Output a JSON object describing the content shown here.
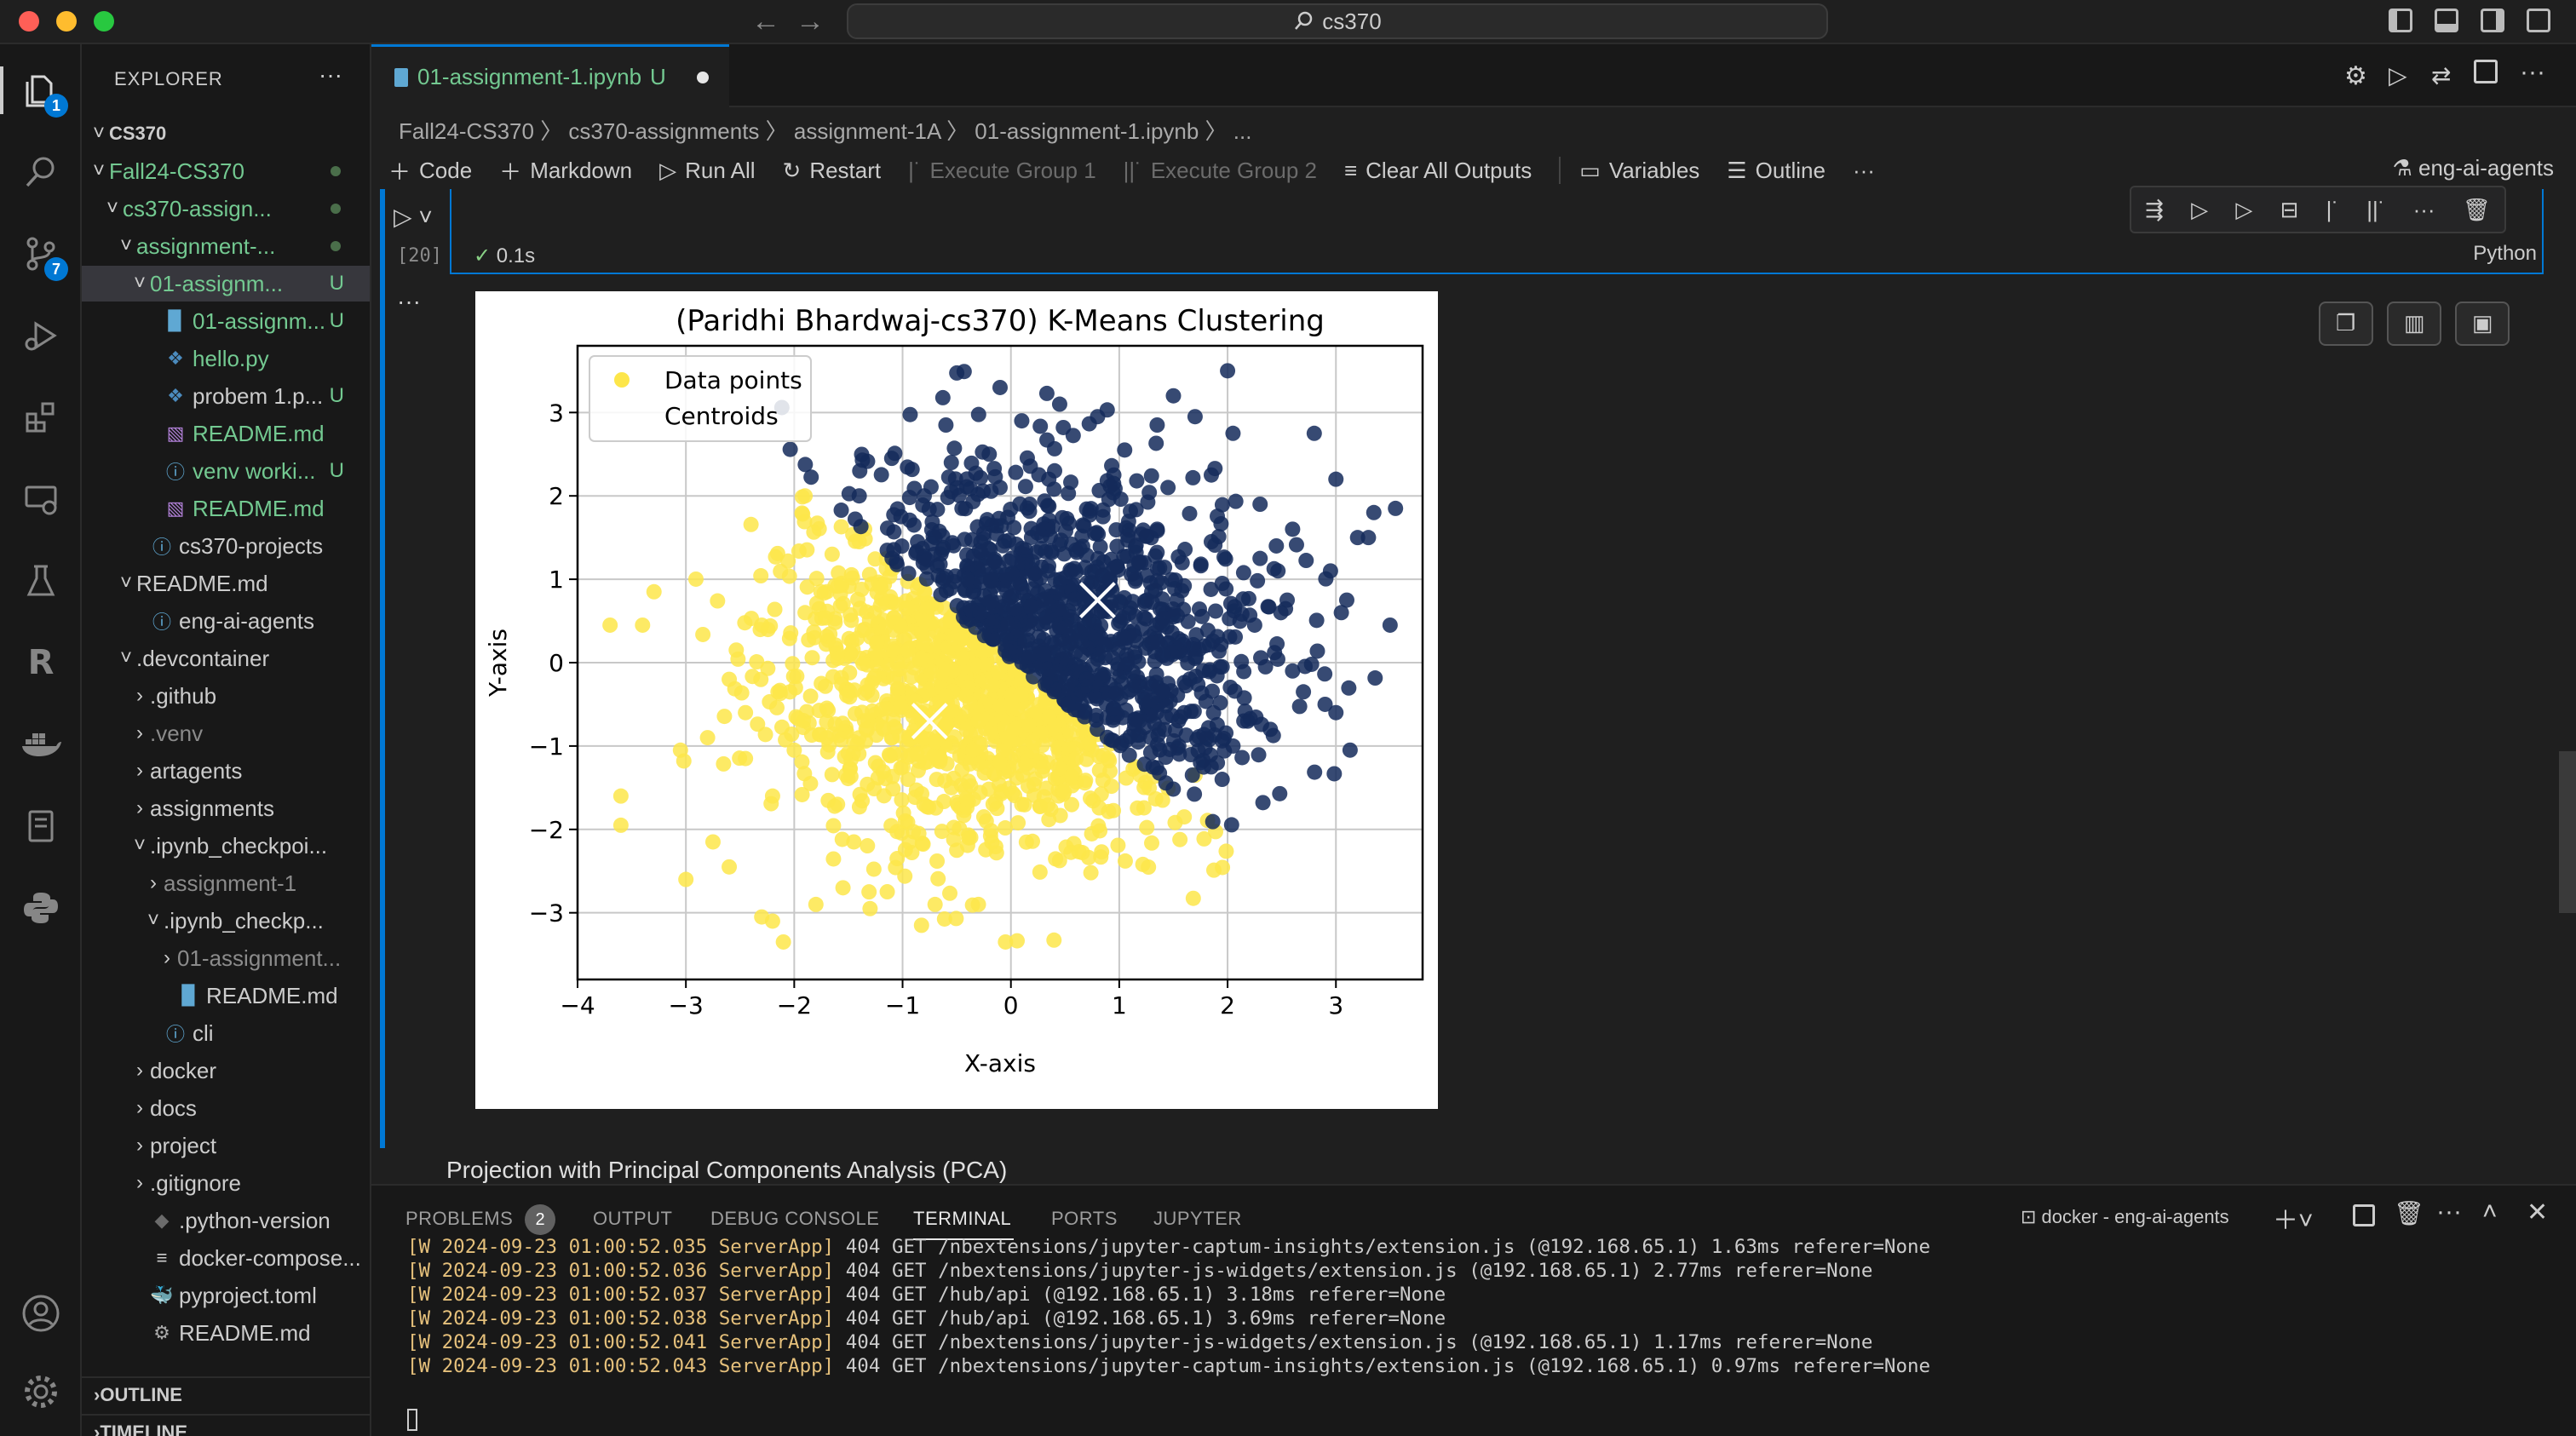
{
  "window": {
    "search": "cs370"
  },
  "sidebar": {
    "title": "EXPLORER",
    "root": "CS370",
    "items": [
      {
        "label": "Fall24-CS370"
      },
      {
        "label": "cs370-assign..."
      },
      {
        "label": "assignment-..."
      },
      {
        "label": "01-assignm...",
        "status": "U"
      },
      {
        "label": "01-assignm...",
        "status": "U"
      },
      {
        "label": "hello.py"
      },
      {
        "label": "probem 1.p...",
        "status": "U"
      },
      {
        "label": "README.md"
      },
      {
        "label": "venv worki...",
        "status": "U"
      },
      {
        "label": "README.md"
      },
      {
        "label": "cs370-projects"
      },
      {
        "label": "README.md"
      },
      {
        "label": "eng-ai-agents"
      },
      {
        "label": ".devcontainer"
      },
      {
        "label": ".github"
      },
      {
        "label": ".venv"
      },
      {
        "label": "artagents"
      },
      {
        "label": "assignments"
      },
      {
        "label": ".ipynb_checkpoi..."
      },
      {
        "label": "assignment-1"
      },
      {
        "label": ".ipynb_checkp..."
      },
      {
        "label": "01-assignment..."
      },
      {
        "label": "README.md"
      },
      {
        "label": "cli"
      },
      {
        "label": "docker"
      },
      {
        "label": "docs"
      },
      {
        "label": "project"
      },
      {
        "label": ".gitignore"
      },
      {
        "label": ".python-version"
      },
      {
        "label": "docker-compose..."
      },
      {
        "label": "pyproject.toml"
      },
      {
        "label": "README.md"
      }
    ],
    "outline": "OUTLINE",
    "timeline": "TIMELINE"
  },
  "activity": {
    "explorer_badge": "1",
    "scm_badge": "7"
  },
  "editor": {
    "tab": {
      "label": "01-assignment-1.ipynb",
      "status": "U"
    },
    "breadcrumb": "Fall24-CS370 〉 cs370-assignments 〉 assignment-1A 〉  01-assignment-1.ipynb 〉 ...",
    "toolbar": {
      "code": "Code",
      "markdown": "Markdown",
      "run_all": "Run All",
      "restart": "Restart",
      "exec1": "Execute Group 1",
      "exec2": "Execute Group 2",
      "clear": "Clear All Outputs",
      "variables": "Variables",
      "outline": "Outline",
      "kernel": "eng-ai-agents"
    },
    "cell": {
      "exec_count": "[20]",
      "time": "0.1s",
      "language": "Python"
    },
    "next_markdown": "Projection with Principal Components Analysis (PCA)"
  },
  "panel": {
    "tabs": [
      "PROBLEMS",
      "OUTPUT",
      "DEBUG CONSOLE",
      "TERMINAL",
      "PORTS",
      "JUPYTER"
    ],
    "problems_count": "2",
    "terminal_name": "docker - eng-ai-agents",
    "lines": [
      {
        "tag": "[W 2024-09-23 01:00:52.035 ServerApp]",
        "msg": " 404 GET /nbextensions/jupyter-captum-insights/extension.js (@192.168.65.1) 1.63ms referer=None"
      },
      {
        "tag": "[W 2024-09-23 01:00:52.036 ServerApp]",
        "msg": " 404 GET /nbextensions/jupyter-js-widgets/extension.js (@192.168.65.1) 2.77ms referer=None"
      },
      {
        "tag": "[W 2024-09-23 01:00:52.037 ServerApp]",
        "msg": " 404 GET /hub/api (@192.168.65.1) 3.18ms referer=None"
      },
      {
        "tag": "[W 2024-09-23 01:00:52.038 ServerApp]",
        "msg": " 404 GET /hub/api (@192.168.65.1) 3.69ms referer=None"
      },
      {
        "tag": "[W 2024-09-23 01:00:52.041 ServerApp]",
        "msg": " 404 GET /nbextensions/jupyter-js-widgets/extension.js (@192.168.65.1) 1.17ms referer=None"
      },
      {
        "tag": "[W 2024-09-23 01:00:52.043 ServerApp]",
        "msg": " 404 GET /nbextensions/jupyter-captum-insights/extension.js (@192.168.65.1) 0.97ms referer=None"
      }
    ]
  },
  "chart_data": {
    "type": "scatter",
    "title": "(Paridhi Bhardwaj-cs370) K-Means Clustering",
    "xlabel": "X-axis",
    "ylabel": "Y-axis",
    "xlim": [
      -4.0,
      3.8
    ],
    "ylim": [
      -3.8,
      3.8
    ],
    "xticks": [
      -4,
      -3,
      -2,
      -1,
      0,
      1,
      2,
      3
    ],
    "yticks": [
      -3,
      -2,
      -1,
      0,
      1,
      2,
      3
    ],
    "xtick_labels": [
      "−4",
      "−3",
      "−2",
      "−1",
      "0",
      "1",
      "2",
      "3"
    ],
    "ytick_labels": [
      "−3",
      "−2",
      "−1",
      "0",
      "1",
      "2",
      "3"
    ],
    "grid": true,
    "legend": {
      "position": "top-left",
      "entries": [
        "Data points",
        "Centroids"
      ]
    },
    "colors": {
      "cluster_a": "#fde64a",
      "cluster_b": "#142a5a",
      "centroid": "#ffffff"
    },
    "centroids": [
      {
        "x": 0.8,
        "y": 0.75
      },
      {
        "x": -0.75,
        "y": -0.7
      }
    ],
    "series": [
      {
        "cluster": "a",
        "points": [
          [
            -3.7,
            0.45
          ],
          [
            -3.4,
            0.45
          ],
          [
            -3.6,
            -1.95
          ],
          [
            -3.6,
            -1.6
          ],
          [
            -3.05,
            -1.05
          ],
          [
            -2.8,
            -0.9
          ],
          [
            -3.0,
            -2.6
          ],
          [
            -2.75,
            -2.15
          ],
          [
            -2.6,
            -2.45
          ],
          [
            -2.3,
            -3.05
          ],
          [
            -2.1,
            -3.35
          ],
          [
            -2.2,
            -3.1
          ],
          [
            -1.8,
            -2.9
          ],
          [
            -1.55,
            -2.7
          ],
          [
            -1.3,
            -2.95
          ],
          [
            -0.7,
            -2.9
          ],
          [
            -0.3,
            -2.9
          ],
          [
            -0.05,
            -3.35
          ],
          [
            -1.9,
            2.0
          ],
          [
            -1.65,
            1.3
          ],
          [
            -1.4,
            1.45
          ],
          [
            -1.35,
            1.6
          ],
          [
            -2.3,
            0.45
          ],
          [
            -2.6,
            -0.2
          ],
          [
            -2.45,
            -0.6
          ],
          [
            -2.15,
            -0.35
          ],
          [
            -1.75,
            -0.25
          ],
          [
            -1.9,
            0.6
          ],
          [
            -2.0,
            -1.05
          ],
          [
            -1.85,
            -1.45
          ],
          [
            -1.6,
            -1.7
          ],
          [
            -1.45,
            -2.15
          ],
          [
            -1.05,
            -2.35
          ],
          [
            -0.85,
            -2.05
          ],
          [
            -0.5,
            -2.25
          ],
          [
            -0.25,
            -1.85
          ],
          [
            0.1,
            -1.7
          ],
          [
            0.3,
            -1.25
          ],
          [
            0.6,
            -1.15
          ],
          [
            0.9,
            -1.15
          ],
          [
            1.15,
            -1.25
          ],
          [
            1.4,
            -1.65
          ],
          [
            1.6,
            -1.85
          ],
          [
            1.7,
            -1.35
          ],
          [
            -1.2,
            0.9
          ],
          [
            -1.05,
            0.7
          ],
          [
            -1.35,
            0.4
          ],
          [
            -0.95,
            0.15
          ],
          [
            -1.6,
            0.05
          ],
          [
            -1.15,
            -0.55
          ],
          [
            -0.7,
            -0.95
          ],
          [
            -0.3,
            -0.7
          ],
          [
            0.0,
            -0.5
          ],
          [
            0.35,
            -0.65
          ],
          [
            0.55,
            -0.85
          ],
          [
            -0.45,
            0.05
          ],
          [
            -0.2,
            0.25
          ],
          [
            -0.8,
            0.5
          ],
          [
            -1.25,
            -1.2
          ],
          [
            -0.95,
            -1.4
          ],
          [
            -0.55,
            -1.5
          ],
          [
            -0.1,
            -1.2
          ],
          [
            0.2,
            -0.95
          ],
          [
            -1.7,
            -0.9
          ],
          [
            -2.2,
            -1.6
          ],
          [
            -2.45,
            -1.15
          ],
          [
            -1.45,
            -0.95
          ],
          [
            -0.6,
            -0.4
          ],
          [
            0.1,
            -0.2
          ],
          [
            -0.35,
            -1.05
          ]
        ],
        "count": 900
      },
      {
        "cluster": "b",
        "points": [
          [
            2.0,
            3.5
          ],
          [
            -0.1,
            3.3
          ],
          [
            1.5,
            3.2
          ],
          [
            2.8,
            2.75
          ],
          [
            3.0,
            2.2
          ],
          [
            3.35,
            1.8
          ],
          [
            3.55,
            1.85
          ],
          [
            3.3,
            1.5
          ],
          [
            3.2,
            1.5
          ],
          [
            2.95,
            1.1
          ],
          [
            3.1,
            0.75
          ],
          [
            3.5,
            0.45
          ],
          [
            3.05,
            0.6
          ],
          [
            2.9,
            -0.5
          ],
          [
            2.7,
            -0.35
          ],
          [
            3.0,
            -0.6
          ],
          [
            2.6,
            -0.1
          ],
          [
            1.95,
            -1.4
          ],
          [
            1.75,
            -1.2
          ],
          [
            1.55,
            -1.0
          ],
          [
            1.95,
            -0.05
          ],
          [
            2.35,
            -0.05
          ],
          [
            2.25,
            0.45
          ],
          [
            2.55,
            0.75
          ],
          [
            2.05,
            2.75
          ],
          [
            1.7,
            2.95
          ],
          [
            1.35,
            2.85
          ],
          [
            0.8,
            2.95
          ],
          [
            0.45,
            3.1
          ],
          [
            0.1,
            2.9
          ],
          [
            -1.4,
            2.0
          ],
          [
            -1.1,
            2.45
          ],
          [
            -0.6,
            2.85
          ],
          [
            -0.55,
            2.4
          ],
          [
            -0.8,
            2.0
          ],
          [
            -0.2,
            2.5
          ],
          [
            0.35,
            2.2
          ],
          [
            0.95,
            2.25
          ],
          [
            1.45,
            2.1
          ],
          [
            1.85,
            2.25
          ],
          [
            2.3,
            1.9
          ],
          [
            2.45,
            1.4
          ],
          [
            1.85,
            1.45
          ],
          [
            1.35,
            1.6
          ],
          [
            0.85,
            1.75
          ],
          [
            0.3,
            1.6
          ],
          [
            -0.25,
            1.55
          ],
          [
            -0.7,
            1.5
          ],
          [
            -0.4,
            1.0
          ],
          [
            0.1,
            0.9
          ],
          [
            0.55,
            0.55
          ],
          [
            1.05,
            0.3
          ],
          [
            1.5,
            0.55
          ],
          [
            1.95,
            0.95
          ],
          [
            2.15,
            -0.7
          ],
          [
            1.4,
            -0.35
          ],
          [
            0.95,
            -0.55
          ],
          [
            0.5,
            0.05
          ],
          [
            0.05,
            0.3
          ],
          [
            1.2,
            1.2
          ],
          [
            1.7,
            0.05
          ],
          [
            2.6,
            1.6
          ],
          [
            2.3,
            1.25
          ],
          [
            0.6,
            1.35
          ],
          [
            -0.1,
            2.1
          ],
          [
            1.05,
            2.55
          ],
          [
            0.7,
            -0.2
          ],
          [
            1.3,
            0.85
          ],
          [
            2.05,
            -1.0
          ],
          [
            1.6,
            -0.6
          ]
        ],
        "count": 900
      }
    ]
  }
}
